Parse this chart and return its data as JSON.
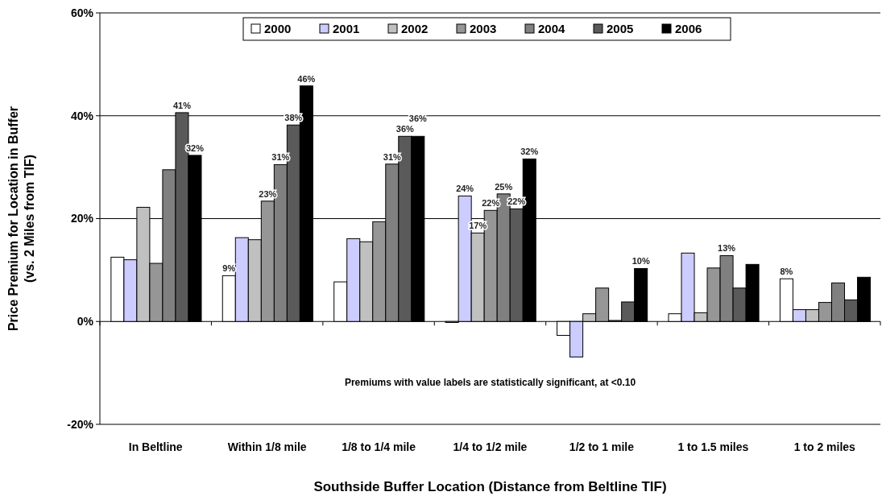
{
  "chart_data": {
    "type": "bar",
    "xlabel": "Southside Buffer Location (Distance from Beltline TIF)",
    "ylabel": "Price Premium for Location in Buffer\n(vs. 2 Miles from TIF)",
    "categories": [
      "In Beltline",
      "Within 1/8 mile",
      "1/8 to 1/4 mile",
      "1/4 to 1/2 mile",
      "1/2 to 1 mile",
      "1 to 1.5 miles",
      "1 to 2 miles"
    ],
    "series": [
      {
        "name": "2000",
        "color": "#ffffff",
        "values": [
          12.5,
          8.9,
          7.7,
          -0.2,
          -2.7,
          1.5,
          8.3
        ],
        "value_labels": [
          null,
          "9%",
          null,
          null,
          null,
          null,
          "8%"
        ]
      },
      {
        "name": "2001",
        "color": "#ccccff",
        "values": [
          12.0,
          16.3,
          16.1,
          24.4,
          -6.9,
          13.3,
          2.3
        ],
        "value_labels": [
          null,
          null,
          null,
          "24%",
          null,
          null,
          null
        ]
      },
      {
        "name": "2002",
        "color": "#c0c0c0",
        "values": [
          22.2,
          15.9,
          15.5,
          17.2,
          1.5,
          1.7,
          2.3
        ],
        "value_labels": [
          null,
          null,
          null,
          "17%",
          null,
          null,
          null
        ]
      },
      {
        "name": "2003",
        "color": "#969696",
        "values": [
          11.3,
          23.4,
          19.4,
          21.6,
          6.5,
          10.4,
          3.7
        ],
        "value_labels": [
          null,
          "23%",
          null,
          "22%",
          null,
          null,
          null
        ]
      },
      {
        "name": "2004",
        "color": "#808080",
        "values": [
          29.5,
          30.5,
          30.6,
          24.8,
          0.2,
          12.8,
          7.5
        ],
        "value_labels": [
          null,
          "31%",
          "31%",
          "25%",
          null,
          "13%",
          null
        ]
      },
      {
        "name": "2005",
        "color": "#5a5a5a",
        "values": [
          40.6,
          38.2,
          36.0,
          21.9,
          3.8,
          6.5,
          4.2
        ],
        "value_labels": [
          "41%",
          "38%",
          "36%",
          "22%",
          null,
          null,
          null
        ]
      },
      {
        "name": "2006",
        "color": "#000000",
        "values": [
          32.3,
          45.8,
          36.0,
          31.6,
          10.3,
          11.1,
          8.6
        ],
        "value_labels": [
          "32%",
          "46%",
          "36%",
          "32%",
          "10%",
          null,
          null
        ]
      }
    ],
    "ylim": [
      -20,
      60
    ],
    "yticks": [
      {
        "value": -20,
        "label": "-20%"
      },
      {
        "value": 0,
        "label": "0%"
      },
      {
        "value": 20,
        "label": "20%"
      },
      {
        "value": 40,
        "label": "40%"
      },
      {
        "value": 60,
        "label": "60%"
      }
    ],
    "grid": "y",
    "legend": "top",
    "annotations": [
      "Premiums with value labels are statistically significant, at <0.10"
    ]
  }
}
